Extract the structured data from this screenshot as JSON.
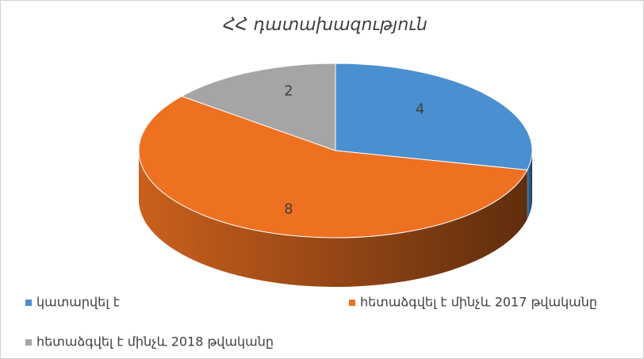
{
  "chart_data": {
    "type": "pie",
    "title": "ՀՀ դատախազություն",
    "categories": [
      "կատարվել է",
      "հետաձգվել է մինչև 2017 թվականը",
      "հետաձգվել է մինչև 2018 թվականը"
    ],
    "values": [
      4,
      8,
      2
    ],
    "colors": [
      "#4a8fd0",
      "#ee7122",
      "#a5a5a5"
    ]
  }
}
